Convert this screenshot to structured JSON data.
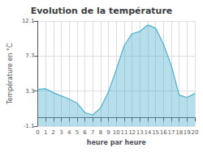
{
  "chart_data": {
    "type": "area",
    "title": "Evolution de la température",
    "xlabel": "heure par heure",
    "ylabel": "Température en °C",
    "x": [
      0,
      1,
      2,
      3,
      4,
      5,
      6,
      7,
      8,
      9,
      10,
      11,
      12,
      13,
      14,
      15,
      16,
      17,
      18,
      19,
      20
    ],
    "values": [
      3.5,
      3.6,
      3.1,
      2.7,
      2.3,
      1.8,
      0.6,
      0.3,
      1.2,
      3.2,
      6.0,
      9.0,
      10.5,
      10.8,
      11.6,
      11.2,
      9.2,
      6.5,
      2.8,
      2.5,
      3.0
    ],
    "color": "#4ab0cc",
    "xlim": [
      0,
      20
    ],
    "xticks": [
      0,
      1,
      2,
      3,
      4,
      5,
      6,
      7,
      8,
      9,
      10,
      11,
      12,
      13,
      14,
      15,
      16,
      17,
      18,
      19,
      20
    ],
    "ylim": [
      -1.1,
      12.1
    ],
    "yticks": [
      -1.1,
      3.3,
      7.7,
      12.1
    ],
    "grid": true
  }
}
